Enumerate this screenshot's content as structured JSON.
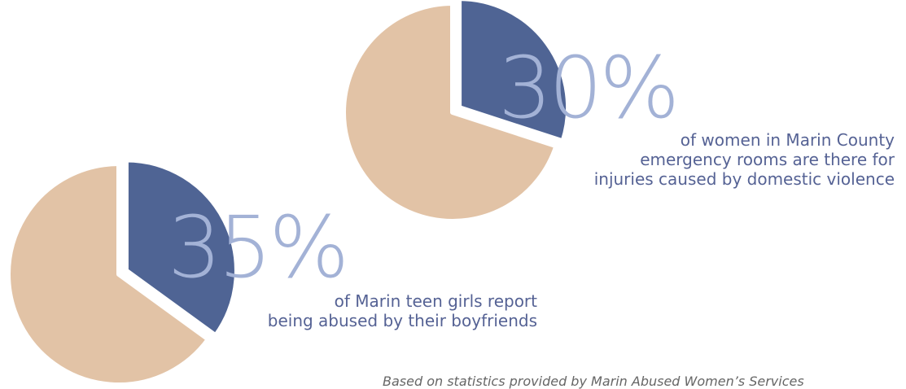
{
  "chart_data": [
    {
      "type": "pie",
      "slices": [
        {
          "value": 30,
          "color": "#4f6494"
        },
        {
          "value": 70,
          "color": "#e2c3a6"
        }
      ],
      "highlight_label": "30%",
      "caption_lines": [
        "of women in Marin County",
        "emergency rooms are there for",
        "injuries caused by domestic violence"
      ]
    },
    {
      "type": "pie",
      "slices": [
        {
          "value": 35,
          "color": "#4f6494"
        },
        {
          "value": 65,
          "color": "#e2c3a6"
        }
      ],
      "highlight_label": "35%",
      "caption_lines": [
        "of Marin teen girls report",
        "being abused by their boyfriends"
      ]
    }
  ],
  "footnote": "Based on statistics provided by Marin Abused Women’s Services",
  "colors": {
    "highlight": "#4f6494",
    "remainder": "#e2c3a6",
    "big_label": "#a3b2d6",
    "caption": "#556294"
  }
}
